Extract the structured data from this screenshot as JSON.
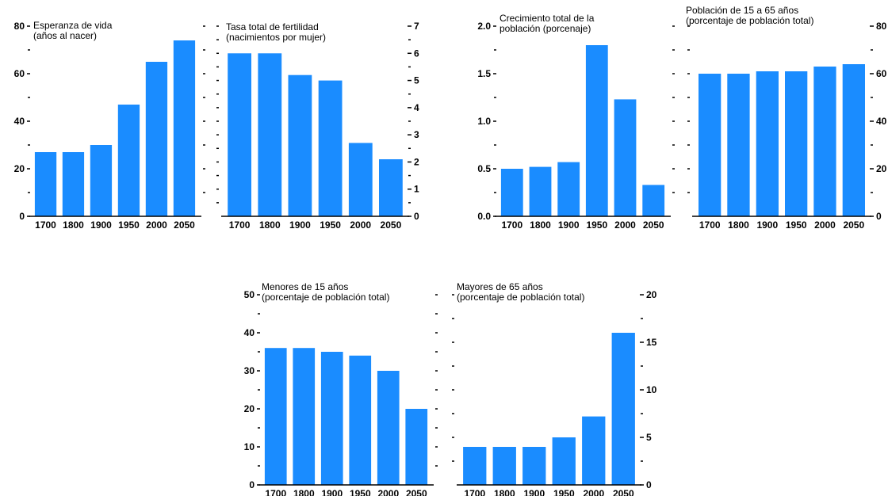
{
  "chart_data": [
    {
      "type": "bar",
      "title_lines": [
        "Esperanza de vida",
        "(años al nacer)"
      ],
      "categories": [
        "1700",
        "1800",
        "1900",
        "1950",
        "2000",
        "2050"
      ],
      "values": [
        27,
        27,
        30,
        47,
        65,
        74
      ],
      "ylim": [
        0,
        80
      ],
      "yticks": [
        "0",
        "20",
        "40",
        "60",
        "80"
      ],
      "axis_side": "left",
      "color": "#1a8cff"
    },
    {
      "type": "bar",
      "title_lines": [
        "Tasa total de fertilidad",
        "(nacimientos por mujer)"
      ],
      "categories": [
        "1700",
        "1800",
        "1900",
        "1950",
        "2000",
        "2050"
      ],
      "values": [
        6,
        6,
        5.2,
        5,
        2.7,
        2.1
      ],
      "ylim": [
        0,
        7
      ],
      "yticks": [
        "0",
        "1",
        "2",
        "3",
        "4",
        "5",
        "6",
        "7"
      ],
      "axis_side": "right",
      "color": "#1a8cff"
    },
    {
      "type": "bar",
      "title_lines": [
        "Crecimiento total de la",
        "población (porcenaje)"
      ],
      "categories": [
        "1700",
        "1800",
        "1900",
        "1950",
        "2000",
        "2050"
      ],
      "values": [
        0.5,
        0.52,
        0.57,
        1.8,
        1.23,
        0.33
      ],
      "ylim": [
        0,
        2.0
      ],
      "yticks": [
        "0.0",
        "0.5",
        "1.0",
        "1.5",
        "2.0"
      ],
      "axis_side": "left",
      "color": "#1a8cff"
    },
    {
      "type": "bar",
      "title_lines": [
        "Población de 15 a 65 años",
        "(porcentaje de población total)"
      ],
      "categories": [
        "1700",
        "1800",
        "1900",
        "1950",
        "2000",
        "2050"
      ],
      "values": [
        60,
        60,
        61,
        61,
        63,
        64
      ],
      "ylim": [
        0,
        80
      ],
      "yticks": [
        "0",
        "20",
        "40",
        "60",
        "80"
      ],
      "axis_side": "right",
      "color": "#1a8cff"
    },
    {
      "type": "bar",
      "title_lines": [
        "Menores de 15 años",
        "(porcentaje de población total)"
      ],
      "categories": [
        "1700",
        "1800",
        "1900",
        "1950",
        "2000",
        "2050"
      ],
      "values": [
        36,
        36,
        35,
        34,
        30,
        20
      ],
      "ylim": [
        0,
        50
      ],
      "yticks": [
        "0",
        "10",
        "20",
        "30",
        "40",
        "50"
      ],
      "axis_side": "left",
      "color": "#1a8cff"
    },
    {
      "type": "bar",
      "title_lines": [
        "Mayores de 65 años",
        "(porcentaje de población total)"
      ],
      "categories": [
        "1700",
        "1800",
        "1900",
        "1950",
        "2000",
        "2050"
      ],
      "values": [
        4,
        4,
        4,
        5,
        7.2,
        16
      ],
      "ylim": [
        0,
        20
      ],
      "yticks": [
        "0",
        "5",
        "10",
        "15",
        "20"
      ],
      "axis_side": "right",
      "color": "#1a8cff"
    }
  ]
}
